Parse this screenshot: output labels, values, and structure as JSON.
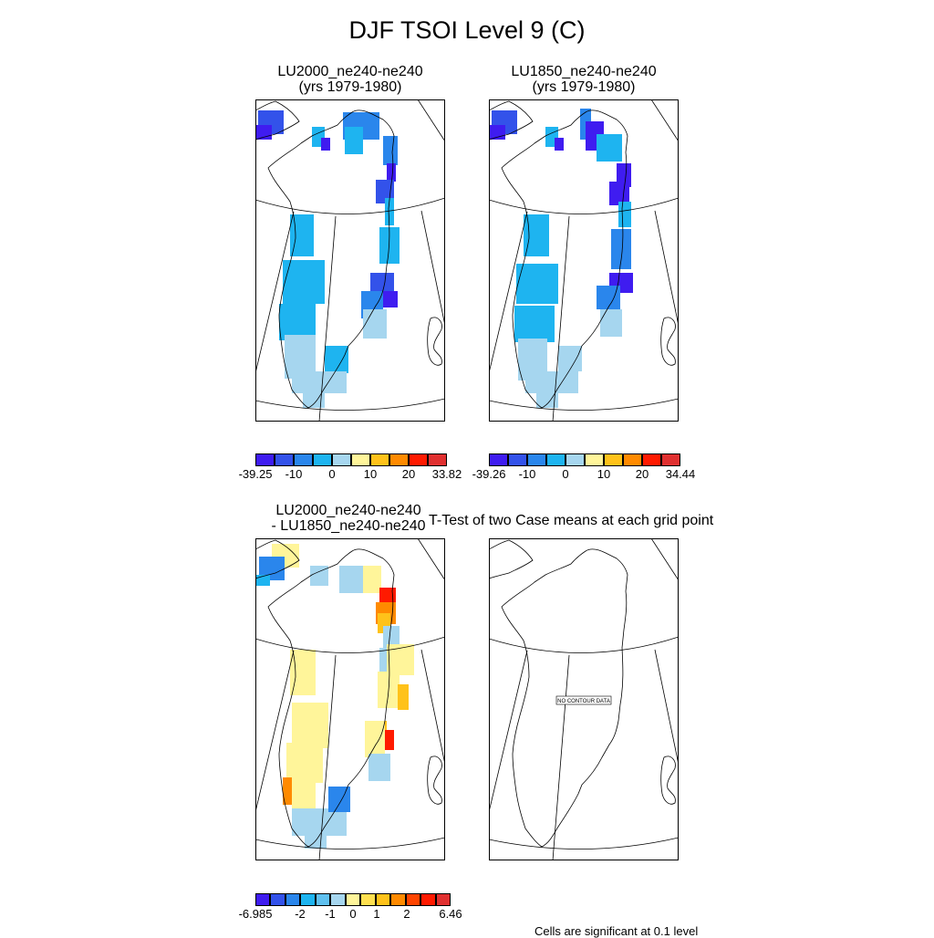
{
  "title": "DJF TSOI Level 9 (C)",
  "panels": [
    {
      "id": "p1",
      "title_line1": "LU2000_ne240-ne240",
      "title_line2": "(yrs 1979-1980)"
    },
    {
      "id": "p2",
      "title_line1": "LU1850_ne240-ne240",
      "title_line2": "(yrs 1979-1980)"
    },
    {
      "id": "p3",
      "title_line1": "LU2000_ne240-ne240",
      "title_line2": "- LU1850_ne240-ne240"
    },
    {
      "id": "p4",
      "title_line1": "T-Test of two Case means at each grid point",
      "title_line2": ""
    }
  ],
  "no_data_text": "NO CONTOUR DATA",
  "footnote": "Cells are significant at 0.1 level",
  "colorbars": [
    {
      "id": "cb1",
      "colors": [
        "#3f1cf0",
        "#3352ea",
        "#2a86ec",
        "#1eb4f0",
        "#a6d6ef",
        "#fff59a",
        "#ffc21a",
        "#ff8a00",
        "#ff1a00",
        "#e03030"
      ],
      "labels": [
        "-39.25",
        "-10",
        "0",
        "10",
        "20",
        "33.82"
      ]
    },
    {
      "id": "cb2",
      "colors": [
        "#3f1cf0",
        "#3352ea",
        "#2a86ec",
        "#1eb4f0",
        "#a6d6ef",
        "#fff59a",
        "#ffc21a",
        "#ff8a00",
        "#ff1a00",
        "#e03030"
      ],
      "labels": [
        "-39.26",
        "-10",
        "0",
        "10",
        "20",
        "34.44"
      ]
    },
    {
      "id": "cb3",
      "colors": [
        "#3f1cf0",
        "#3352ea",
        "#2a86ec",
        "#1eb4f0",
        "#5fc0ef",
        "#a6d6ef",
        "#fff59a",
        "#ffe050",
        "#ffc21a",
        "#ff8a00",
        "#ff4400",
        "#ff1a00",
        "#e03030"
      ],
      "labels": [
        "-6.985",
        "-2",
        "-1",
        "0",
        "1",
        "2",
        "6.46"
      ]
    }
  ]
}
